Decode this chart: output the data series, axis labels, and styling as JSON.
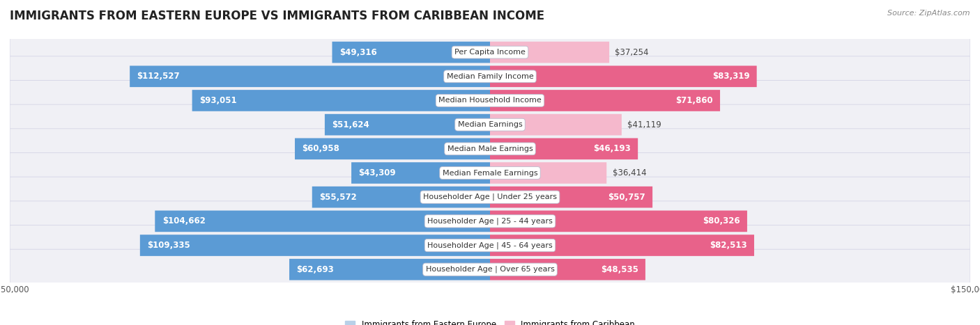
{
  "title": "IMMIGRANTS FROM EASTERN EUROPE VS IMMIGRANTS FROM CARIBBEAN INCOME",
  "source": "Source: ZipAtlas.com",
  "categories": [
    "Per Capita Income",
    "Median Family Income",
    "Median Household Income",
    "Median Earnings",
    "Median Male Earnings",
    "Median Female Earnings",
    "Householder Age | Under 25 years",
    "Householder Age | 25 - 44 years",
    "Householder Age | 45 - 64 years",
    "Householder Age | Over 65 years"
  ],
  "eastern_europe": [
    49316,
    112527,
    93051,
    51624,
    60958,
    43309,
    55572,
    104662,
    109335,
    62693
  ],
  "caribbean": [
    37254,
    83319,
    71860,
    41119,
    46193,
    36414,
    50757,
    80326,
    82513,
    48535
  ],
  "max_val": 150000,
  "blue_light": "#b8d0e8",
  "blue_dark": "#5b9bd5",
  "pink_light": "#f5b8cc",
  "pink_dark": "#e8628a",
  "row_bg": "#f0f0f5",
  "row_border": "#d8d8e8",
  "label_font_size": 8.5,
  "title_font_size": 12,
  "source_font_size": 8,
  "legend_blue": "Immigrants from Eastern Europe",
  "legend_pink": "Immigrants from Caribbean",
  "inside_threshold": 0.28
}
